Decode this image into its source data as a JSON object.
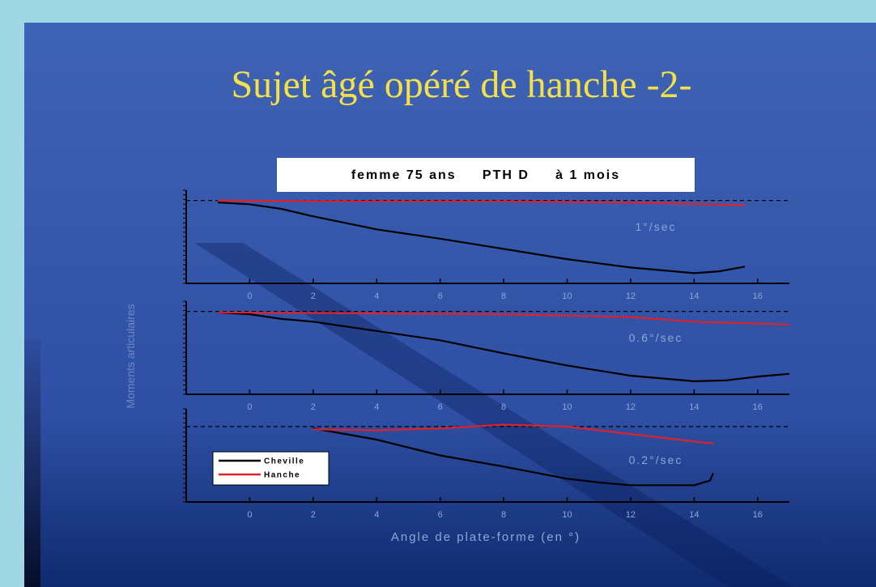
{
  "slide": {
    "title": "Sujet âgé opéré de hanche -2-",
    "subtitle": "femme 75 ans     PTH D     à 1 mois"
  },
  "chart_data": [
    {
      "type": "line",
      "annotation": "1°/sec",
      "ylabel": "Moments articulaires",
      "xlim": [
        -2,
        17
      ],
      "ylim": [
        0,
        10
      ],
      "xticks": [
        0,
        2,
        4,
        6,
        8,
        10,
        12,
        14,
        16
      ],
      "reference": 8.9,
      "series": [
        {
          "name": "Cheville",
          "color": "#000000",
          "x": [
            -1,
            0,
            1,
            2,
            4,
            6,
            8,
            10,
            12,
            14,
            14.8,
            15.6
          ],
          "values": [
            8.7,
            8.5,
            8.0,
            7.2,
            5.8,
            4.8,
            3.7,
            2.6,
            1.7,
            1.1,
            1.3,
            1.8
          ]
        },
        {
          "name": "Hanche",
          "color": "#e0202a",
          "x": [
            -1,
            4,
            8,
            12,
            15.6
          ],
          "values": [
            8.9,
            8.8,
            8.8,
            8.7,
            8.4
          ]
        }
      ]
    },
    {
      "type": "line",
      "annotation": "0.6°/sec",
      "xlim": [
        -2,
        17
      ],
      "ylim": [
        0,
        10
      ],
      "xticks": [
        0,
        2,
        4,
        6,
        8,
        10,
        12,
        14,
        16
      ],
      "reference": 8.9,
      "series": [
        {
          "name": "Cheville",
          "color": "#000000",
          "x": [
            -1,
            0,
            1,
            2,
            4,
            6,
            8,
            10,
            12,
            14,
            15,
            16,
            17
          ],
          "values": [
            8.8,
            8.6,
            8.1,
            7.8,
            6.8,
            5.8,
            4.4,
            3.1,
            2.0,
            1.4,
            1.5,
            1.9,
            2.2
          ]
        },
        {
          "name": "Hanche",
          "color": "#e0202a",
          "x": [
            -1,
            8,
            12,
            14,
            17
          ],
          "values": [
            8.8,
            8.6,
            8.3,
            7.8,
            7.5
          ]
        }
      ]
    },
    {
      "type": "line",
      "annotation": "0.2°/sec",
      "xlabel": "Angle de plate-forme (en °)",
      "xlim": [
        -2,
        17
      ],
      "ylim": [
        0,
        10
      ],
      "xticks": [
        0,
        2,
        4,
        6,
        8,
        10,
        12,
        14,
        16
      ],
      "reference": 8.1,
      "series": [
        {
          "name": "Cheville",
          "color": "#000000",
          "x": [
            2,
            3,
            4,
            6,
            8,
            10,
            11,
            12,
            14,
            14.5,
            14.6
          ],
          "values": [
            7.9,
            7.3,
            6.7,
            5.0,
            3.8,
            2.5,
            2.1,
            1.8,
            1.8,
            2.3,
            3.1
          ]
        },
        {
          "name": "Hanche",
          "color": "#e0202a",
          "x": [
            2,
            4,
            6,
            8,
            10,
            12,
            14,
            14.6
          ],
          "values": [
            7.8,
            7.7,
            7.9,
            8.3,
            8.1,
            7.3,
            6.5,
            6.3
          ]
        }
      ]
    }
  ]
}
